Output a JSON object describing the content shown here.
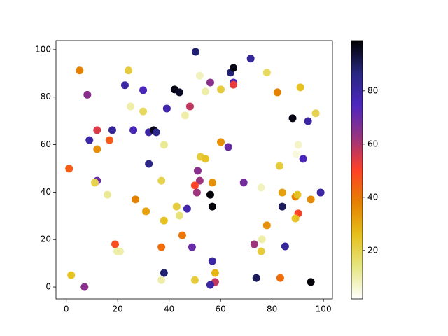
{
  "chart_data": {
    "type": "scatter",
    "x": [
      5.2,
      24.2,
      50.3,
      71.7,
      63.9,
      65,
      78,
      51.9,
      8.2,
      22.8,
      29.9,
      42.1,
      44,
      54.1,
      56,
      60.1,
      65,
      65,
      82.1,
      91,
      25,
      29.9,
      39.1,
      48.1,
      46.2,
      97,
      88,
      94,
      12,
      17.9,
      26.1,
      32.1,
      34,
      35,
      9,
      16.8,
      12,
      38,
      60.1,
      63,
      90.2,
      89.4,
      52.2,
      54.1,
      1.1,
      32.1,
      82.9,
      92.1,
      51.1,
      12,
      11.1,
      51.9,
      37,
      50,
      56.8,
      69,
      75.8,
      98.9,
      16,
      56,
      50.8,
      84,
      89.1,
      89.9,
      95.1,
      26.9,
      42.9,
      47,
      56.8,
      84,
      31,
      44,
      90.2,
      89.1,
      38,
      78,
      45.1,
      76.1,
      19,
      37,
      48.9,
      73.1,
      85.1,
      75.8,
      19.8,
      20.9,
      56.8,
      38,
      57.9,
      1.9,
      37,
      50,
      73.9,
      83.2,
      57.9,
      56,
      95.1,
      7.1
    ],
    "y": [
      91.2,
      91.2,
      99.1,
      96.2,
      90.3,
      92.3,
      90.3,
      89,
      81,
      85,
      82.9,
      83.2,
      82,
      82.3,
      86.1,
      83.2,
      86.1,
      85.2,
      82,
      84.1,
      76.1,
      74,
      75.2,
      76.1,
      72.3,
      73.2,
      71.1,
      69.9,
      66.1,
      66.1,
      66.1,
      65.2,
      66.1,
      65.2,
      61.9,
      61.9,
      58.1,
      59.9,
      61.1,
      59,
      59.9,
      56,
      54.9,
      54,
      49.9,
      51.9,
      51,
      54,
      49,
      44.8,
      44,
      44.8,
      44.8,
      42.8,
      44,
      44,
      41.9,
      39.8,
      38.9,
      38.9,
      39.8,
      39.8,
      38.1,
      38.9,
      36.9,
      36.9,
      33.9,
      33,
      33.9,
      33.9,
      31.9,
      30.1,
      31,
      28.9,
      28,
      26,
      21.8,
      20.1,
      18,
      16.8,
      16.8,
      18,
      17.1,
      15,
      15,
      15,
      10.9,
      5.9,
      5.9,
      5,
      2.9,
      2.9,
      3.8,
      3.8,
      2.1,
      0.9,
      2.1,
      0
    ],
    "c": [
      38,
      22,
      88,
      82,
      88,
      97,
      18,
      8,
      65,
      80,
      75,
      97,
      95,
      10,
      65,
      22,
      75,
      53,
      38,
      25,
      10,
      18,
      78,
      58,
      10,
      20,
      97,
      80,
      55,
      82,
      76,
      80,
      97,
      85,
      80,
      45,
      35,
      12,
      35,
      70,
      7,
      5,
      22,
      25,
      45,
      85,
      22,
      75,
      65,
      70,
      20,
      62,
      20,
      50,
      35,
      68,
      8,
      80,
      12,
      98,
      62,
      32,
      38,
      25,
      36,
      38,
      22,
      78,
      98,
      90,
      32,
      15,
      50,
      25,
      25,
      35,
      40,
      10,
      48,
      42,
      70,
      62,
      82,
      22,
      10,
      10,
      80,
      88,
      28,
      25,
      10,
      22,
      90,
      42,
      58,
      80,
      98,
      65
    ],
    "colormap": "CMRmap_r",
    "xlim": [
      -4,
      103.5
    ],
    "ylim": [
      -5,
      103.8
    ],
    "clim": [
      1.8,
      98.9
    ],
    "xticks": [
      0,
      20,
      40,
      60,
      80,
      100
    ],
    "yticks": [
      0,
      20,
      40,
      60,
      80,
      100
    ],
    "cticks": [
      20,
      40,
      60,
      80
    ]
  }
}
